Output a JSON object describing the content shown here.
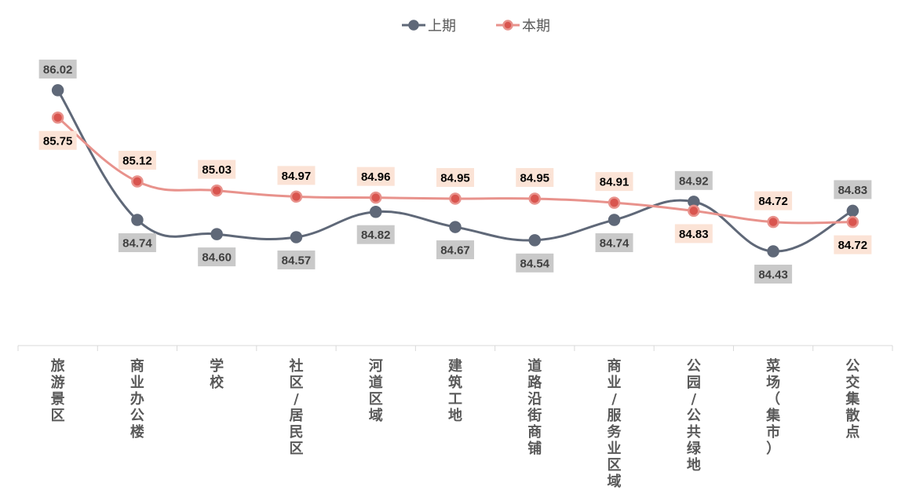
{
  "chart_data": {
    "type": "line",
    "title": "",
    "xlabel": "",
    "ylabel": "",
    "ylim": [
      83.5,
      86.5
    ],
    "grid": false,
    "legend": "top-center",
    "categories": [
      "旅游景区",
      "商业办公楼",
      "学校",
      "社区/居民区",
      "河道区域",
      "建筑工地",
      "道路沿街商铺",
      "商业/服务业区域",
      "公园/公共绿地",
      "菜场（集市）",
      "公交集散点"
    ],
    "series": [
      {
        "name": "上期",
        "color": "#5f6878",
        "marker_fill": "#5f6878",
        "label_bg": "#c9c9c9",
        "label_color": "#404040",
        "values": [
          86.02,
          84.74,
          84.6,
          84.57,
          84.82,
          84.67,
          84.54,
          84.74,
          84.92,
          84.43,
          84.83
        ]
      },
      {
        "name": "本期",
        "color": "#e8928c",
        "marker_fill": "#d9554f",
        "label_bg": "#fbe3d6",
        "label_color": "#000000",
        "values": [
          85.75,
          85.12,
          85.03,
          84.97,
          84.96,
          84.95,
          84.95,
          84.91,
          84.83,
          84.72,
          84.72
        ]
      }
    ]
  }
}
